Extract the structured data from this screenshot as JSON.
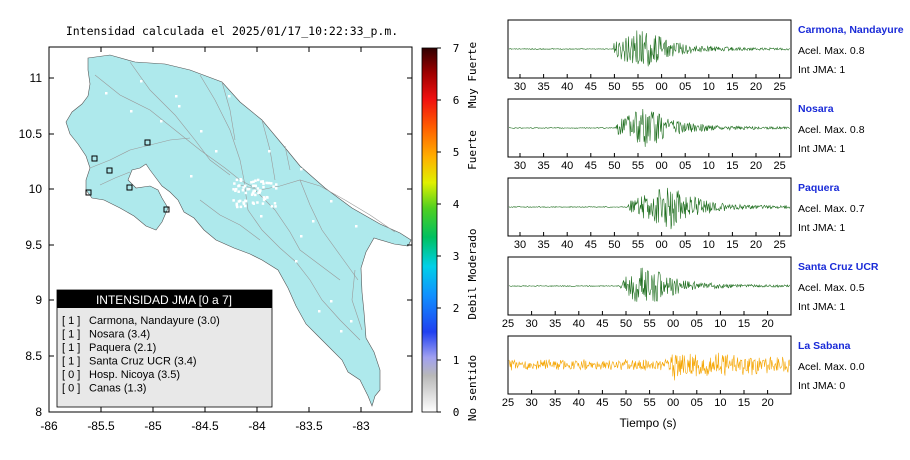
{
  "map": {
    "title": "Intensidad calculada el 2025/01/17_10:22:33_p.m.",
    "x_ticks": [
      "-86",
      "-85.5",
      "-85",
      "-84.5",
      "-84",
      "-83.5",
      "-83"
    ],
    "y_ticks": [
      "11",
      "10.5",
      "10",
      "9.5",
      "9",
      "8.5",
      "8"
    ],
    "land_color": "#aee9ec",
    "legend": {
      "title": "INTENSIDAD JMA [0 a 7]",
      "items": [
        {
          "level": "[ 1 ]",
          "text": "Carmona, Nandayure (3.0)"
        },
        {
          "level": "[ 1 ]",
          "text": "Nosara (3.4)"
        },
        {
          "level": "[ 1 ]",
          "text": "Paquera (2.1)"
        },
        {
          "level": "[ 1 ]",
          "text": "Santa Cruz UCR (3.4)"
        },
        {
          "level": "[ 0 ]",
          "text": "Hosp. Nicoya (3.5)"
        },
        {
          "level": "[ 0 ]",
          "text": "Canas (1.3)"
        }
      ]
    }
  },
  "colorbar": {
    "ticks": [
      "7",
      "6",
      "5",
      "4",
      "3",
      "2",
      "1",
      "0"
    ],
    "labels": [
      "Muy Fuerte",
      "Fuerte",
      "Moderado",
      "Debil",
      "No sentido"
    ]
  },
  "chart_data": [
    {
      "type": "line",
      "station": "Carmona, Nandayure",
      "acel": "Acel. Max. 0.8",
      "int": "Int JMA: 1",
      "x_ticks": [
        "30",
        "35",
        "40",
        "45",
        "50",
        "55",
        "00",
        "05",
        "10",
        "15",
        "20",
        "25"
      ],
      "burst_start": 47.5,
      "peak_at": 54,
      "amplitude": 0.8,
      "color": "#1e6e1e"
    },
    {
      "type": "line",
      "station": "Nosara",
      "acel": "Acel. Max. 0.8",
      "int": "Int JMA: 1",
      "x_ticks": [
        "30",
        "35",
        "40",
        "45",
        "50",
        "55",
        "00",
        "05",
        "10",
        "15",
        "20",
        "25"
      ],
      "burst_start": 48,
      "peak_at": 55,
      "amplitude": 0.8,
      "color": "#1e6e1e"
    },
    {
      "type": "line",
      "station": "Paquera",
      "acel": "Acel. Max. 0.7",
      "int": "Int JMA: 1",
      "x_ticks": [
        "30",
        "35",
        "40",
        "45",
        "50",
        "55",
        "00",
        "05",
        "10",
        "15",
        "20",
        "25"
      ],
      "burst_start": 51,
      "peak_at": 61,
      "amplitude": 0.7,
      "color": "#1e6e1e"
    },
    {
      "type": "line",
      "station": "Santa Cruz UCR",
      "acel": "Acel. Max. 0.5",
      "int": "Int JMA: 1",
      "x_ticks": [
        "25",
        "30",
        "35",
        "40",
        "45",
        "50",
        "55",
        "00",
        "05",
        "10",
        "15",
        "20"
      ],
      "burst_start": 49,
      "peak_at": 55,
      "amplitude": 0.5,
      "color": "#1e6e1e"
    },
    {
      "type": "line",
      "station": "La Sabana",
      "acel": "Acel. Max. 0.0",
      "int": "Int JMA: 0",
      "x_ticks": [
        "25",
        "30",
        "35",
        "40",
        "45",
        "50",
        "55",
        "00",
        "05",
        "10",
        "15",
        "20"
      ],
      "burst_start": 24,
      "peak_at": 63,
      "amplitude": 0.0,
      "color": "#f5a500"
    }
  ],
  "xlabel": "Tiempo (s)"
}
